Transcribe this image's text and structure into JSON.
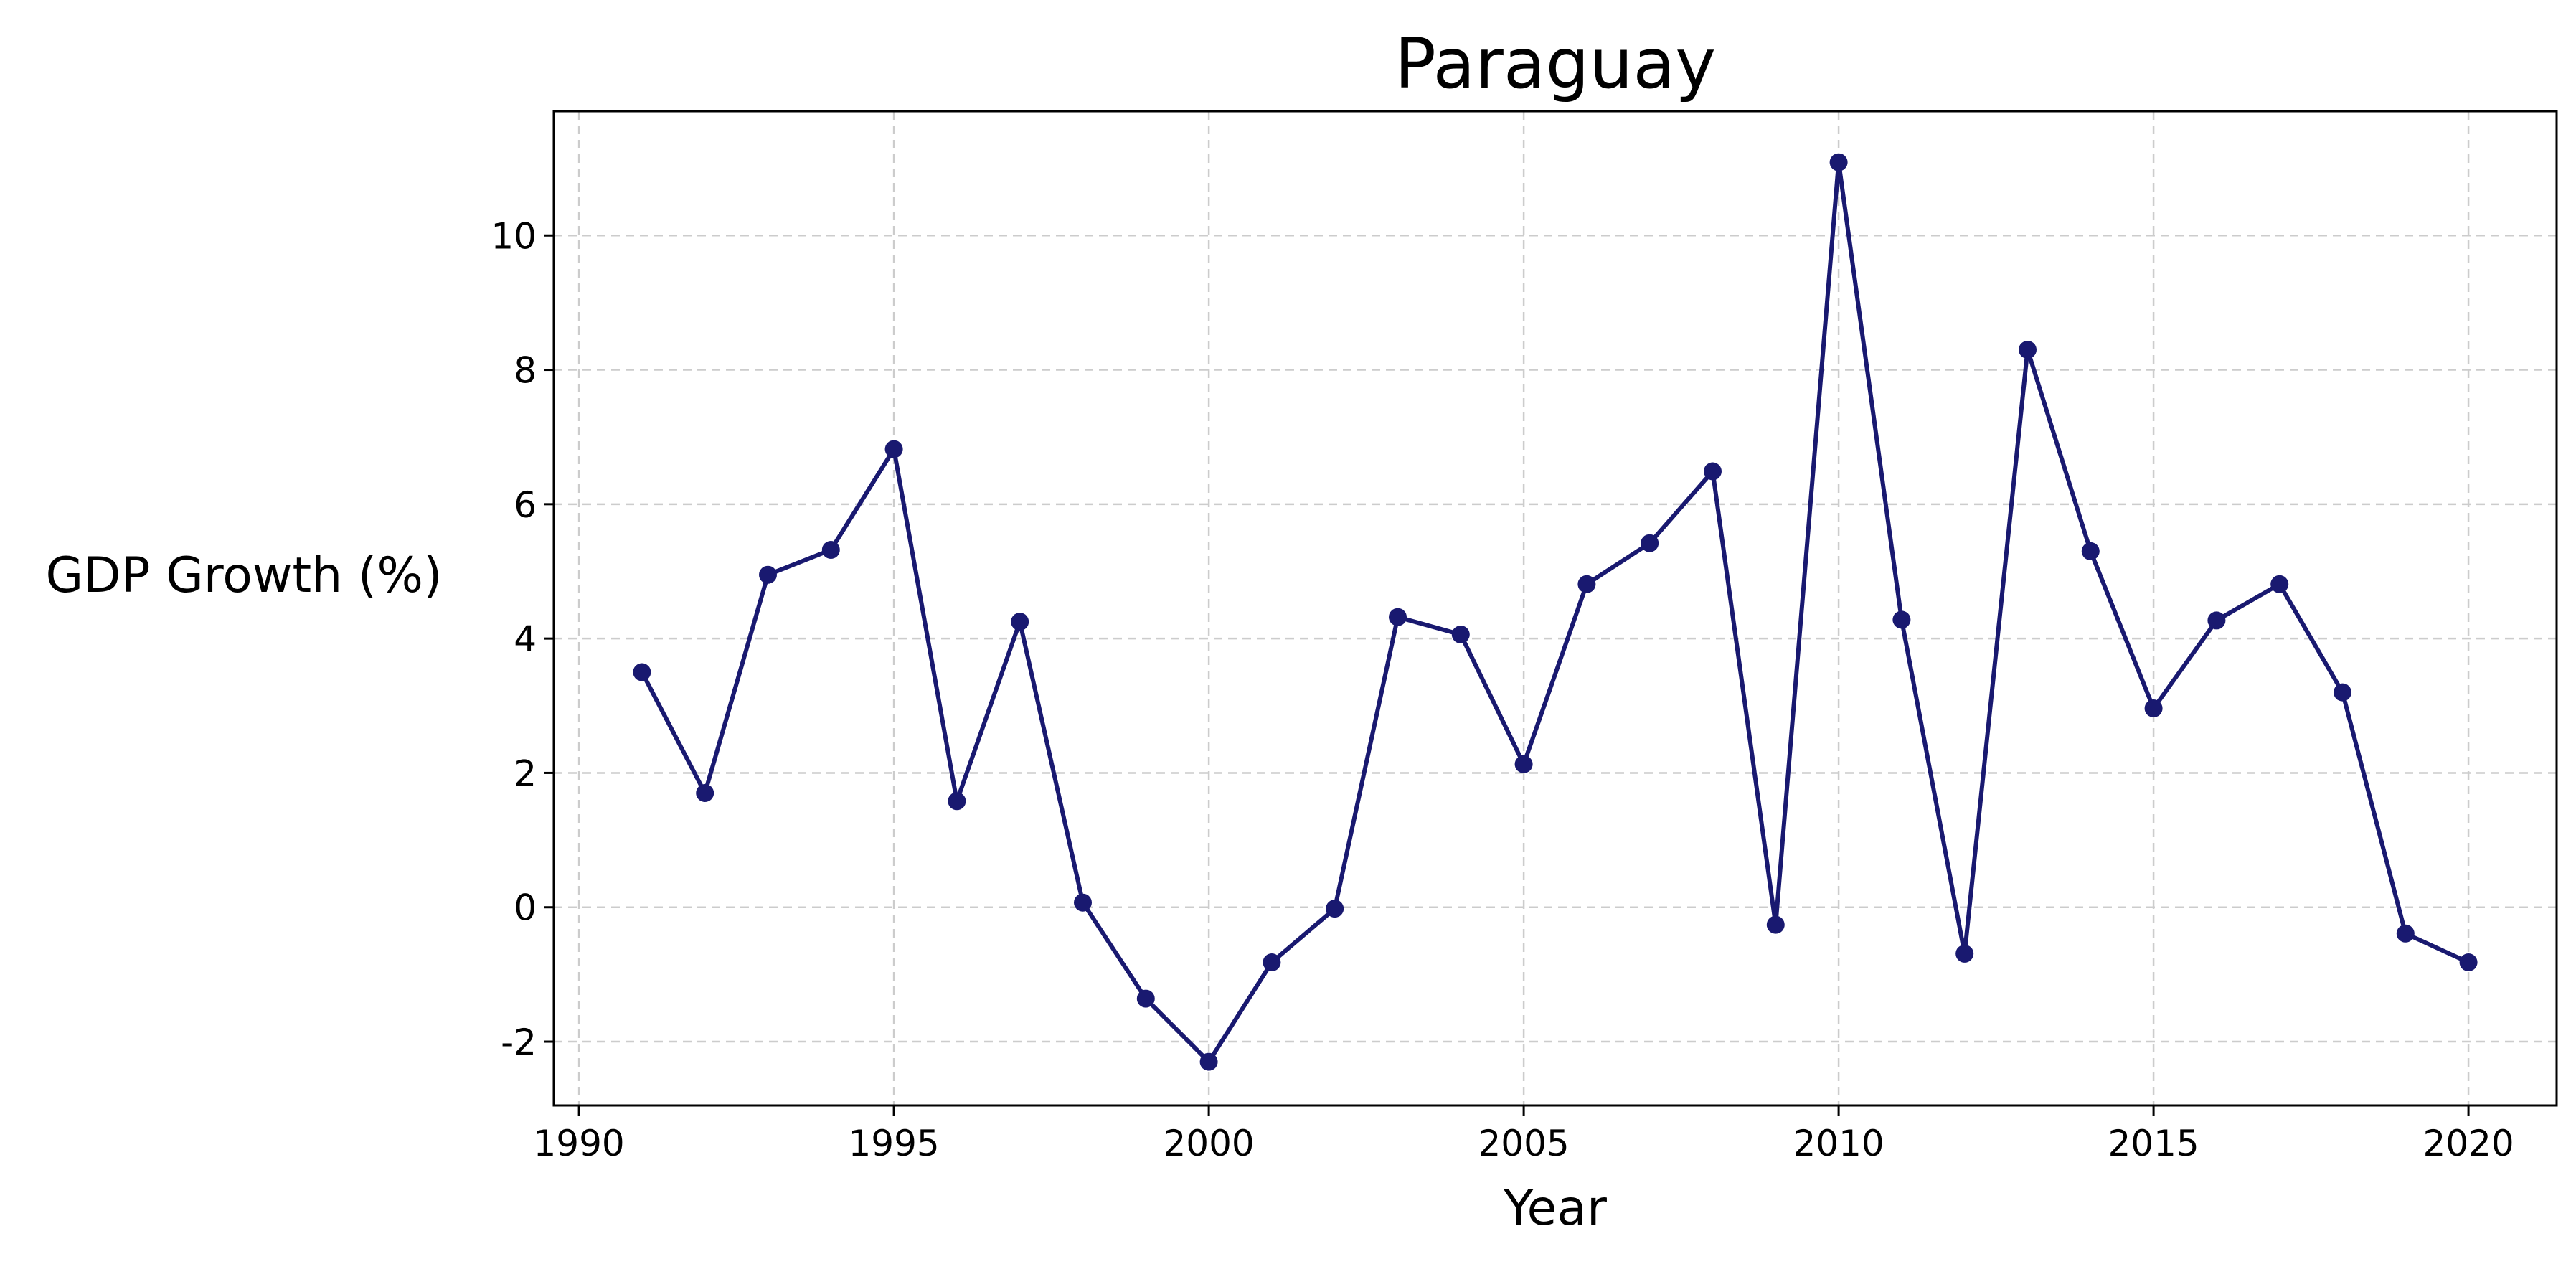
{
  "chart_data": {
    "type": "line",
    "title": "Paraguay",
    "xlabel": "Year",
    "ylabel": "GDP Growth (%)",
    "xlim": [
      1989.6,
      2021.4
    ],
    "ylim": [
      -2.95,
      11.85
    ],
    "xticks": [
      1990,
      1995,
      2000,
      2005,
      2010,
      2015,
      2020
    ],
    "yticks": [
      -2,
      0,
      2,
      4,
      6,
      8,
      10
    ],
    "grid": true,
    "legend": "none",
    "series": [
      {
        "color": "#191970",
        "marker": "circle",
        "x": [
          1991,
          1992,
          1993,
          1994,
          1995,
          1996,
          1997,
          1998,
          1999,
          2000,
          2001,
          2002,
          2003,
          2004,
          2005,
          2006,
          2007,
          2008,
          2009,
          2010,
          2011,
          2012,
          2013,
          2014,
          2015,
          2016,
          2017,
          2018,
          2019,
          2020
        ],
        "values": [
          3.5,
          1.7,
          4.95,
          5.32,
          6.82,
          1.58,
          4.25,
          0.07,
          -1.36,
          -2.3,
          -0.82,
          -0.02,
          4.32,
          4.06,
          2.13,
          4.81,
          5.42,
          6.49,
          -0.26,
          11.09,
          4.28,
          -0.69,
          8.3,
          5.3,
          2.96,
          4.27,
          4.81,
          3.2,
          -0.39,
          -0.82
        ]
      }
    ]
  }
}
